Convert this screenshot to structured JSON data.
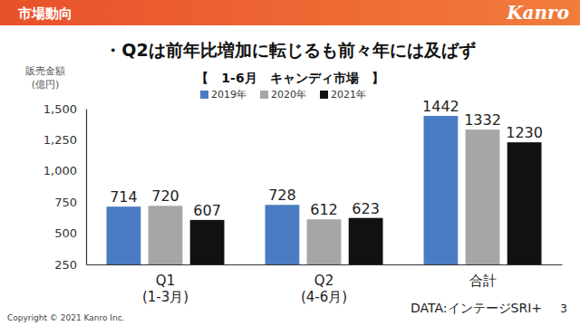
{
  "header": {
    "title": "市場動向",
    "logo": "Kanro"
  },
  "chart_data": {
    "type": "bar",
    "title": "・Q2は前年比増加に転じるも前々年には及ばず",
    "subtitle": "【　1-6月　キャンディ市場　】",
    "ylabel": "販売金額\n(億円)",
    "categories": [
      "Q1\n(1-3月)",
      "Q2\n(4-6月)",
      "合計"
    ],
    "series": [
      {
        "name": "2019年",
        "color": "#4a7cc3",
        "values": [
          714,
          728,
          1442
        ]
      },
      {
        "name": "2020年",
        "color": "#a6a6a6",
        "values": [
          720,
          612,
          1332
        ]
      },
      {
        "name": "2021年",
        "color": "#111111",
        "values": [
          607,
          623,
          1230
        ]
      }
    ],
    "ylim": [
      250,
      1500
    ],
    "yticks": [
      250,
      500,
      750,
      {
        "value": 1000,
        "label": "1,000"
      },
      {
        "value": 1250,
        "label": "1,250"
      },
      {
        "value": 1500,
        "label": "1,500"
      }
    ],
    "grid": false,
    "data_labels": true,
    "legend": "top"
  },
  "footer": {
    "copyright": "Copyright © 2021 Kanro Inc.",
    "source": "DATA:インテージSRI+",
    "page": "3"
  }
}
